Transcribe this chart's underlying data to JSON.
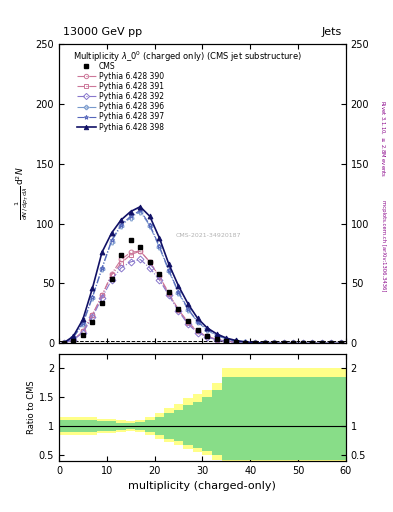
{
  "title_top": "13000 GeV pp",
  "title_right": "Jets",
  "plot_title": "Multiplicity $\\lambda\\_0^0$ (charged only) (CMS jet substructure)",
  "xlabel": "multiplicity (charged-only)",
  "ylabel_main_lines": [
    "mathrm d$^2$N",
    "mathrm d p$_T$mathrm d lambda"
  ],
  "ylabel_ratio": "Ratio to CMS",
  "right_label1": "Rivet 3.1.10, $\\geq$ 2.8M events",
  "right_label2": "mcplots.cern.ch [arXiv:1306.3436]",
  "watermark": "CMS-2021-34920187",
  "xlim": [
    0,
    60
  ],
  "ylim_main": [
    0,
    250
  ],
  "ylim_ratio": [
    0.4,
    2.25
  ],
  "yticks_main": [
    0,
    50,
    100,
    150,
    200,
    250
  ],
  "yticks_ratio": [
    0.5,
    1.0,
    1.5,
    2.0
  ],
  "xticks": [
    0,
    10,
    20,
    30,
    40,
    50,
    60
  ],
  "cms_x": [
    1,
    3,
    5,
    7,
    9,
    11,
    13,
    15,
    17,
    19,
    21,
    23,
    25,
    27,
    29,
    31,
    33,
    35,
    37,
    39,
    41,
    43,
    45,
    47,
    49,
    51,
    53,
    55,
    57,
    59
  ],
  "cms_y": [
    0.5,
    2,
    7,
    18,
    34,
    54,
    74,
    86,
    80,
    68,
    58,
    43,
    29,
    19,
    11,
    6,
    3.5,
    2,
    1,
    0.5,
    0.3,
    0.1,
    0.05,
    0.02,
    0.01,
    0,
    0,
    0,
    0,
    0
  ],
  "p390_x": [
    1,
    3,
    5,
    7,
    9,
    11,
    13,
    15,
    17,
    19,
    21,
    23,
    25,
    27,
    29,
    31,
    33,
    35,
    37,
    39,
    41,
    43,
    45,
    47,
    49,
    51,
    53,
    55,
    57,
    59
  ],
  "p390_y": [
    0.5,
    3,
    10,
    24,
    40,
    58,
    70,
    76,
    77,
    68,
    56,
    42,
    28,
    18,
    10,
    6,
    3.5,
    2,
    1,
    0.5,
    0.2,
    0.1,
    0.05,
    0,
    0,
    0,
    0,
    0,
    0,
    0
  ],
  "p391_x": [
    1,
    3,
    5,
    7,
    9,
    11,
    13,
    15,
    17,
    19,
    21,
    23,
    25,
    27,
    29,
    31,
    33,
    35,
    37,
    39,
    41,
    43,
    45,
    47,
    49,
    51,
    53,
    55,
    57,
    59
  ],
  "p391_y": [
    0.5,
    3,
    10,
    24,
    40,
    57,
    67,
    74,
    77,
    68,
    55,
    41,
    28,
    17,
    10,
    6,
    3,
    1.8,
    1,
    0.4,
    0.2,
    0.1,
    0.04,
    0,
    0,
    0,
    0,
    0,
    0,
    0
  ],
  "p392_x": [
    1,
    3,
    5,
    7,
    9,
    11,
    13,
    15,
    17,
    19,
    21,
    23,
    25,
    27,
    29,
    31,
    33,
    35,
    37,
    39,
    41,
    43,
    45,
    47,
    49,
    51,
    53,
    55,
    57,
    59
  ],
  "p392_y": [
    0.5,
    3,
    9,
    22,
    38,
    53,
    63,
    68,
    70,
    63,
    53,
    40,
    27,
    16,
    9,
    5.5,
    3,
    1.8,
    0.9,
    0.4,
    0.2,
    0.1,
    0.04,
    0,
    0,
    0,
    0,
    0,
    0,
    0
  ],
  "p396_x": [
    1,
    3,
    5,
    7,
    9,
    11,
    13,
    15,
    17,
    19,
    21,
    23,
    25,
    27,
    29,
    31,
    33,
    35,
    37,
    39,
    41,
    43,
    45,
    47,
    49,
    51,
    53,
    55,
    57,
    59
  ],
  "p396_y": [
    0.5,
    5,
    16,
    38,
    62,
    85,
    98,
    105,
    110,
    98,
    80,
    60,
    42,
    28,
    18,
    11,
    6.5,
    3.8,
    2,
    1,
    0.5,
    0.25,
    0.1,
    0.04,
    0,
    0,
    0,
    0,
    0,
    0
  ],
  "p397_x": [
    1,
    3,
    5,
    7,
    9,
    11,
    13,
    15,
    17,
    19,
    21,
    23,
    25,
    27,
    29,
    31,
    33,
    35,
    37,
    39,
    41,
    43,
    45,
    47,
    49,
    51,
    53,
    55,
    57,
    59
  ],
  "p397_y": [
    0.5,
    5,
    17,
    39,
    63,
    86,
    99,
    106,
    111,
    99,
    81,
    61,
    43,
    29,
    18,
    12,
    7,
    4,
    2,
    1,
    0.5,
    0.25,
    0.1,
    0.05,
    0,
    0,
    0,
    0,
    0,
    0
  ],
  "p398_x": [
    1,
    3,
    5,
    7,
    9,
    11,
    13,
    15,
    17,
    19,
    21,
    23,
    25,
    27,
    29,
    31,
    33,
    35,
    37,
    39,
    41,
    43,
    45,
    47,
    49,
    51,
    53,
    55,
    57,
    59
  ],
  "p398_y": [
    0.5,
    6,
    20,
    46,
    76,
    92,
    103,
    110,
    114,
    106,
    88,
    66,
    48,
    33,
    21,
    13,
    8,
    4.5,
    2.5,
    1.3,
    0.7,
    0.35,
    0.15,
    0.08,
    0,
    0,
    0,
    0,
    0,
    0
  ],
  "color_390": "#cc7799",
  "color_391": "#cc7799",
  "color_392": "#8877cc",
  "color_396": "#7799cc",
  "color_397": "#5566bb",
  "color_398": "#111166",
  "marker_390": "o",
  "marker_391": "s",
  "marker_392": "D",
  "marker_396": "P",
  "marker_397": "*",
  "marker_398": "^",
  "ratio_yellow_edges": [
    0,
    2,
    4,
    6,
    8,
    10,
    12,
    14,
    16,
    18,
    20,
    22,
    24,
    26,
    28,
    30,
    32,
    34,
    36,
    38,
    40,
    42,
    44,
    46,
    48,
    50,
    52,
    54,
    56,
    58,
    60
  ],
  "ratio_yellow_lo": [
    0.85,
    0.85,
    0.85,
    0.85,
    0.88,
    0.88,
    0.9,
    0.92,
    0.9,
    0.85,
    0.78,
    0.72,
    0.68,
    0.6,
    0.55,
    0.5,
    0.42,
    0.35,
    0.35,
    0.35,
    0.35,
    0.35,
    0.35,
    0.35,
    0.35,
    0.35,
    0.35,
    0.35,
    0.35,
    0.35
  ],
  "ratio_yellow_hi": [
    1.15,
    1.15,
    1.15,
    1.15,
    1.12,
    1.12,
    1.1,
    1.08,
    1.1,
    1.15,
    1.22,
    1.32,
    1.38,
    1.48,
    1.55,
    1.62,
    1.75,
    2.0,
    2.0,
    2.0,
    2.0,
    2.0,
    2.0,
    2.0,
    2.0,
    2.0,
    2.0,
    2.0,
    2.0,
    2.0
  ],
  "ratio_green_edges": [
    0,
    2,
    4,
    6,
    8,
    10,
    12,
    14,
    16,
    18,
    20,
    22,
    24,
    26,
    28,
    30,
    32,
    34,
    36,
    38,
    40,
    42,
    44,
    46,
    48,
    50,
    52,
    54,
    56,
    58,
    60
  ],
  "ratio_green_lo": [
    0.9,
    0.9,
    0.9,
    0.9,
    0.92,
    0.92,
    0.94,
    0.95,
    0.93,
    0.9,
    0.84,
    0.78,
    0.74,
    0.67,
    0.62,
    0.57,
    0.5,
    0.42,
    0.42,
    0.42,
    0.42,
    0.42,
    0.42,
    0.42,
    0.42,
    0.42,
    0.42,
    0.42,
    0.42,
    0.42
  ],
  "ratio_green_hi": [
    1.1,
    1.1,
    1.1,
    1.1,
    1.08,
    1.08,
    1.06,
    1.05,
    1.07,
    1.1,
    1.16,
    1.22,
    1.28,
    1.36,
    1.42,
    1.5,
    1.62,
    1.85,
    1.85,
    1.85,
    1.85,
    1.85,
    1.85,
    1.85,
    1.85,
    1.85,
    1.85,
    1.85,
    1.85,
    1.85
  ]
}
